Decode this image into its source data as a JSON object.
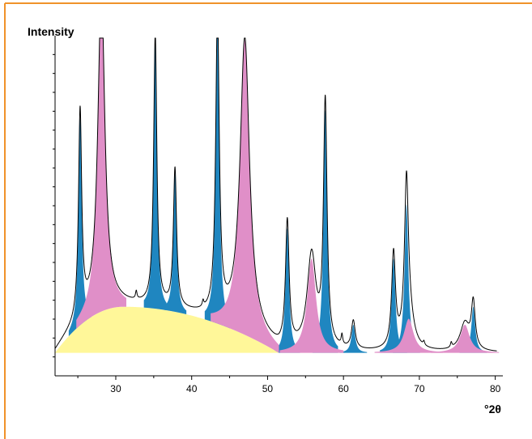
{
  "chart_data": {
    "type": "line",
    "title": "",
    "ylabel": "Intensity",
    "xlabel": "°2θ",
    "xlim": [
      22,
      81
    ],
    "ylim": [
      0,
      16
    ],
    "x_ticks": [
      30,
      40,
      50,
      60,
      70,
      80
    ],
    "y_minor_tick_count": 17,
    "grid": false,
    "legend": "none",
    "colors": {
      "frame": "#f0922a",
      "curve": "#000000",
      "amorphous_fill": "#fff799",
      "phase_a_fill": "#1f86c0",
      "phase_b_fill": "#e08fc8"
    },
    "baseline": 0.5,
    "amorphous_hump": {
      "start": 22,
      "end": 51.5,
      "peak_x": 31,
      "peak_y": 2.3
    },
    "series": [
      {
        "color_key": "phase_a_fill",
        "peaks": [
          {
            "x": 25.3,
            "y": 10.3,
            "width": 0.25
          },
          {
            "x": 35.2,
            "y": 13.5,
            "width": 0.25
          },
          {
            "x": 37.8,
            "y": 6.9,
            "width": 0.25
          },
          {
            "x": 43.4,
            "y": 15.1,
            "width": 0.28
          },
          {
            "x": 52.6,
            "y": 6.2,
            "width": 0.28
          },
          {
            "x": 57.6,
            "y": 12.1,
            "width": 0.28
          },
          {
            "x": 61.3,
            "y": 1.4,
            "width": 0.3
          },
          {
            "x": 66.6,
            "y": 4.7,
            "width": 0.3
          },
          {
            "x": 68.3,
            "y": 7.4,
            "width": 0.3
          },
          {
            "x": 77.1,
            "y": 2.3,
            "width": 0.3
          }
        ]
      },
      {
        "color_key": "phase_b_fill",
        "peaks": [
          {
            "x": 28.1,
            "y": 16.0,
            "width": 0.55
          },
          {
            "x": 47.0,
            "y": 14.7,
            "width": 0.75
          },
          {
            "x": 55.8,
            "y": 4.7,
            "width": 0.7
          },
          {
            "x": 68.6,
            "y": 1.7,
            "width": 0.75
          },
          {
            "x": 76.0,
            "y": 1.4,
            "width": 0.75
          }
        ]
      }
    ],
    "minor_peaks": [
      {
        "x": 32.7,
        "y": 0.4
      },
      {
        "x": 41.5,
        "y": 0.3
      },
      {
        "x": 59.8,
        "y": 0.5
      },
      {
        "x": 70.6,
        "y": 0.2
      },
      {
        "x": 74.2,
        "y": 0.25
      }
    ]
  }
}
